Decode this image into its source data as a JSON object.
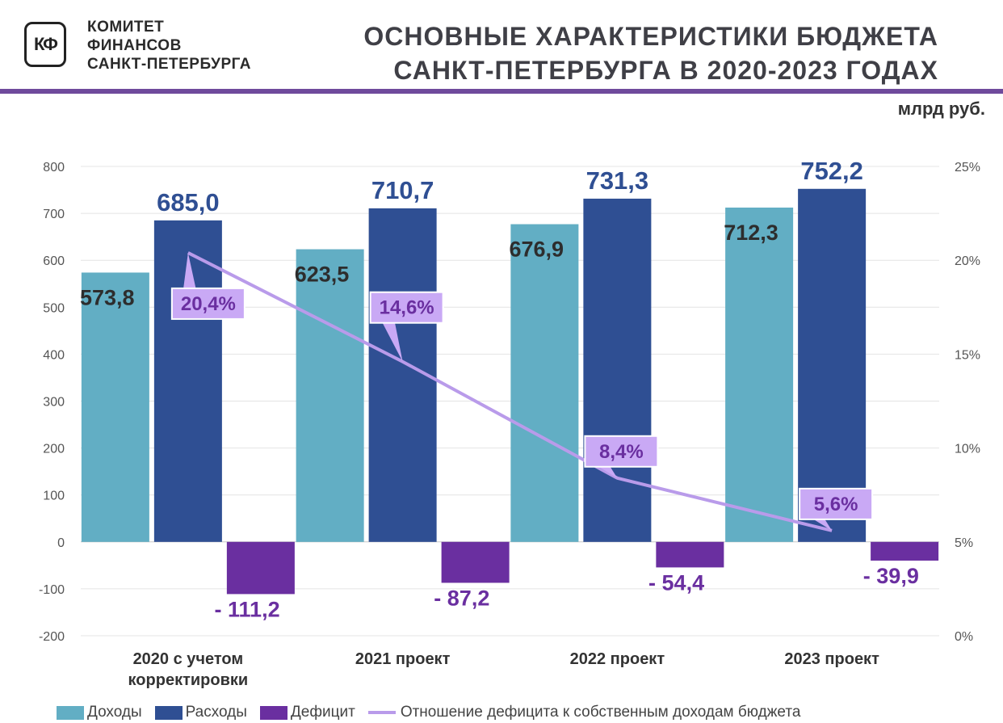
{
  "header": {
    "logo_text": "КФ",
    "org_lines": [
      "КОМИТЕТ",
      "ФИНАНСОВ",
      "САНКТ-ПЕТЕРБУРГА"
    ],
    "title_lines": [
      "ОСНОВНЫЕ ХАРАКТЕРИСТИКИ БЮДЖЕТА",
      "САНКТ-ПЕТЕРБУРГА В 2020-2023 ГОДАХ"
    ],
    "unit": "млрд руб."
  },
  "colors": {
    "income": "#62aec4",
    "expense": "#2f4f93",
    "deficit": "#6a2fa0",
    "ratio_line": "#b99bea",
    "ratio_label_bg": "#c9a9f5",
    "ratio_label_text": "#6a2fa0",
    "rule": "#6f4a9c"
  },
  "chart_data": {
    "type": "bar",
    "categories": [
      [
        "2020 с учетом",
        "корректировки"
      ],
      [
        "2021 проект"
      ],
      [
        "2022 проект"
      ],
      [
        "2023 проект"
      ]
    ],
    "series": [
      {
        "name": "Доходы",
        "values": [
          573.8,
          623.5,
          676.9,
          712.3
        ],
        "labels": [
          "573,8",
          "623,5",
          "676,9",
          "712,3"
        ]
      },
      {
        "name": "Расходы",
        "values": [
          685.0,
          710.7,
          731.3,
          752.2
        ],
        "labels": [
          "685,0",
          "710,7",
          "731,3",
          "752,2"
        ]
      },
      {
        "name": "Дефицит",
        "values": [
          -111.2,
          -87.2,
          -54.4,
          -39.9
        ],
        "labels": [
          "- 111,2",
          "- 87,2",
          "- 54,4",
          "- 39,9"
        ]
      }
    ],
    "line_series": {
      "name": "Отношение дефицита к собственным доходам бюджета",
      "values": [
        20.4,
        14.6,
        8.4,
        5.6
      ],
      "labels": [
        "20,4%",
        "14,6%",
        "8,4%",
        "5,6%"
      ]
    },
    "ylim": [
      -200,
      800
    ],
    "yticks": [
      -200,
      -100,
      0,
      100,
      200,
      300,
      400,
      500,
      600,
      700,
      800
    ],
    "ytick_labels": [
      "-200",
      "-100",
      "0",
      "100",
      "200",
      "300",
      "400",
      "500",
      "600",
      "700",
      "800"
    ],
    "y2lim": [
      0,
      25
    ],
    "y2ticks": [
      0,
      5,
      10,
      15,
      20,
      25
    ],
    "y2tick_labels": [
      "0%",
      "5%",
      "10%",
      "15%",
      "20%",
      "25%"
    ],
    "grid": true,
    "legend": "bottom"
  }
}
